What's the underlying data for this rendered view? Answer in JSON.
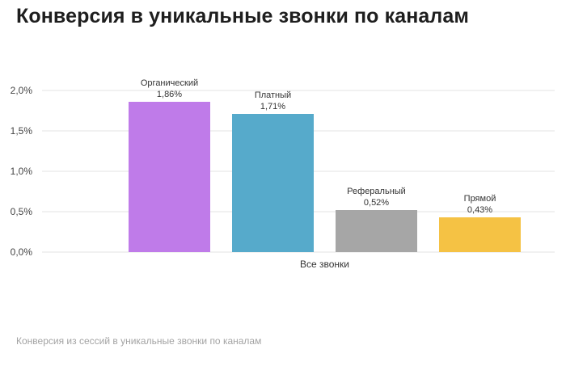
{
  "title": "Конверсия в уникальные звонки по каналам",
  "caption": "Конверсия из сессий в уникальные звонки по каналам",
  "chart_data": {
    "type": "bar",
    "title": "Конверсия в уникальные звонки по каналам",
    "categories": [
      "Все звонки"
    ],
    "series": [
      {
        "name": "Органический",
        "values": [
          1.86
        ],
        "label": "1,86%",
        "color": "#bf7be9"
      },
      {
        "name": "Платный",
        "values": [
          1.71
        ],
        "label": "1,71%",
        "color": "#56aacb"
      },
      {
        "name": "Реферальный",
        "values": [
          0.52
        ],
        "label": "0,52%",
        "color": "#a6a6a6"
      },
      {
        "name": "Прямой",
        "values": [
          0.43
        ],
        "label": "0,43%",
        "color": "#f5c244"
      }
    ],
    "yticks": [
      {
        "value": 0,
        "label": "0,0%"
      },
      {
        "value": 0.5,
        "label": "0,5%"
      },
      {
        "value": 1.0,
        "label": "1,0%"
      },
      {
        "value": 1.5,
        "label": "1,5%"
      },
      {
        "value": 2.0,
        "label": "2,0%"
      }
    ],
    "ylim": [
      0,
      2.0
    ],
    "xlabel": "",
    "ylabel": "",
    "grid": true,
    "gridColor": "#e3e3e3"
  }
}
